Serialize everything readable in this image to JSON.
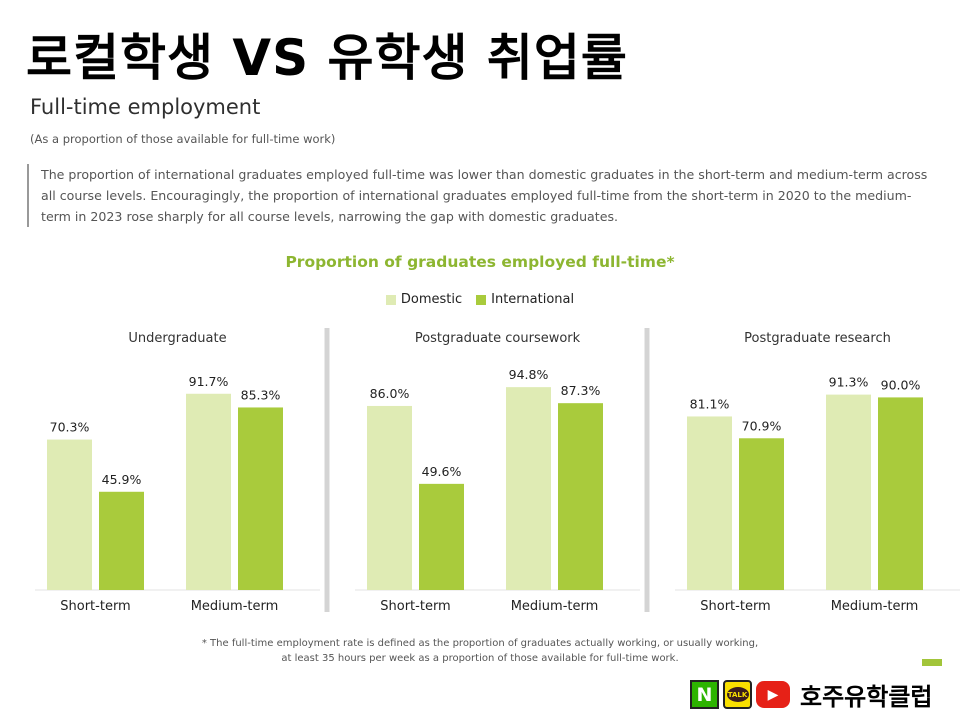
{
  "slide_title": "로컬학생 VS 유학생 취업률",
  "section": {
    "heading": "Full-time employment",
    "subheading": "(As a proportion of those available for full-time work)",
    "body": "The proportion of international graduates employed full-time was lower than domestic graduates in the short-term and medium-term across all course levels. Encouragingly, the proportion of international graduates employed full-time from the short-term in 2020 to the medium-term in 2023 rose sharply for all course levels, narrowing the gap with domestic graduates."
  },
  "colors": {
    "domestic": "#dfebb4",
    "international": "#a9cb3c",
    "title_green": "#8db631",
    "divider": "#d4d4d4"
  },
  "chart_data": {
    "type": "bar",
    "title": "Proportion of graduates employed full-time*",
    "legend": [
      {
        "name": "Domestic",
        "color": "#dfebb4"
      },
      {
        "name": "International",
        "color": "#a9cb3c"
      }
    ],
    "ylim": [
      0,
      100
    ],
    "unit": "%",
    "panels": [
      {
        "title": "Undergraduate",
        "categories": [
          "Short-term",
          "Medium-term"
        ],
        "series": [
          {
            "name": "Domestic",
            "values": [
              70.3,
              91.7
            ],
            "labels": [
              "70.3%",
              "91.7%"
            ]
          },
          {
            "name": "International",
            "values": [
              45.9,
              85.3
            ],
            "labels": [
              "45.9%",
              "85.3%"
            ]
          }
        ]
      },
      {
        "title": "Postgraduate coursework",
        "categories": [
          "Short-term",
          "Medium-term"
        ],
        "series": [
          {
            "name": "Domestic",
            "values": [
              86.0,
              94.8
            ],
            "labels": [
              "86.0%",
              "94.8%"
            ]
          },
          {
            "name": "International",
            "values": [
              49.6,
              87.3
            ],
            "labels": [
              "49.6%",
              "87.3%"
            ]
          }
        ]
      },
      {
        "title": "Postgraduate research",
        "categories": [
          "Short-term",
          "Medium-term"
        ],
        "series": [
          {
            "name": "Domestic",
            "values": [
              81.1,
              91.3
            ],
            "labels": [
              "81.1%",
              "91.3%"
            ]
          },
          {
            "name": "International",
            "values": [
              70.9,
              90.0
            ],
            "labels": [
              "70.9%",
              "90.0%"
            ]
          }
        ]
      }
    ]
  },
  "footnote": {
    "line1": "* The full-time employment rate is defined as the proportion of graduates actually working, or usually working,",
    "line2": "at least 35 hours per week as a proportion of those available for full-time work."
  },
  "footer": {
    "naver_letter": "N",
    "talk_label": "TALK",
    "brand": "호주유학클럽",
    "icons": [
      "naver-icon",
      "kakaotalk-icon",
      "youtube-icon"
    ]
  }
}
